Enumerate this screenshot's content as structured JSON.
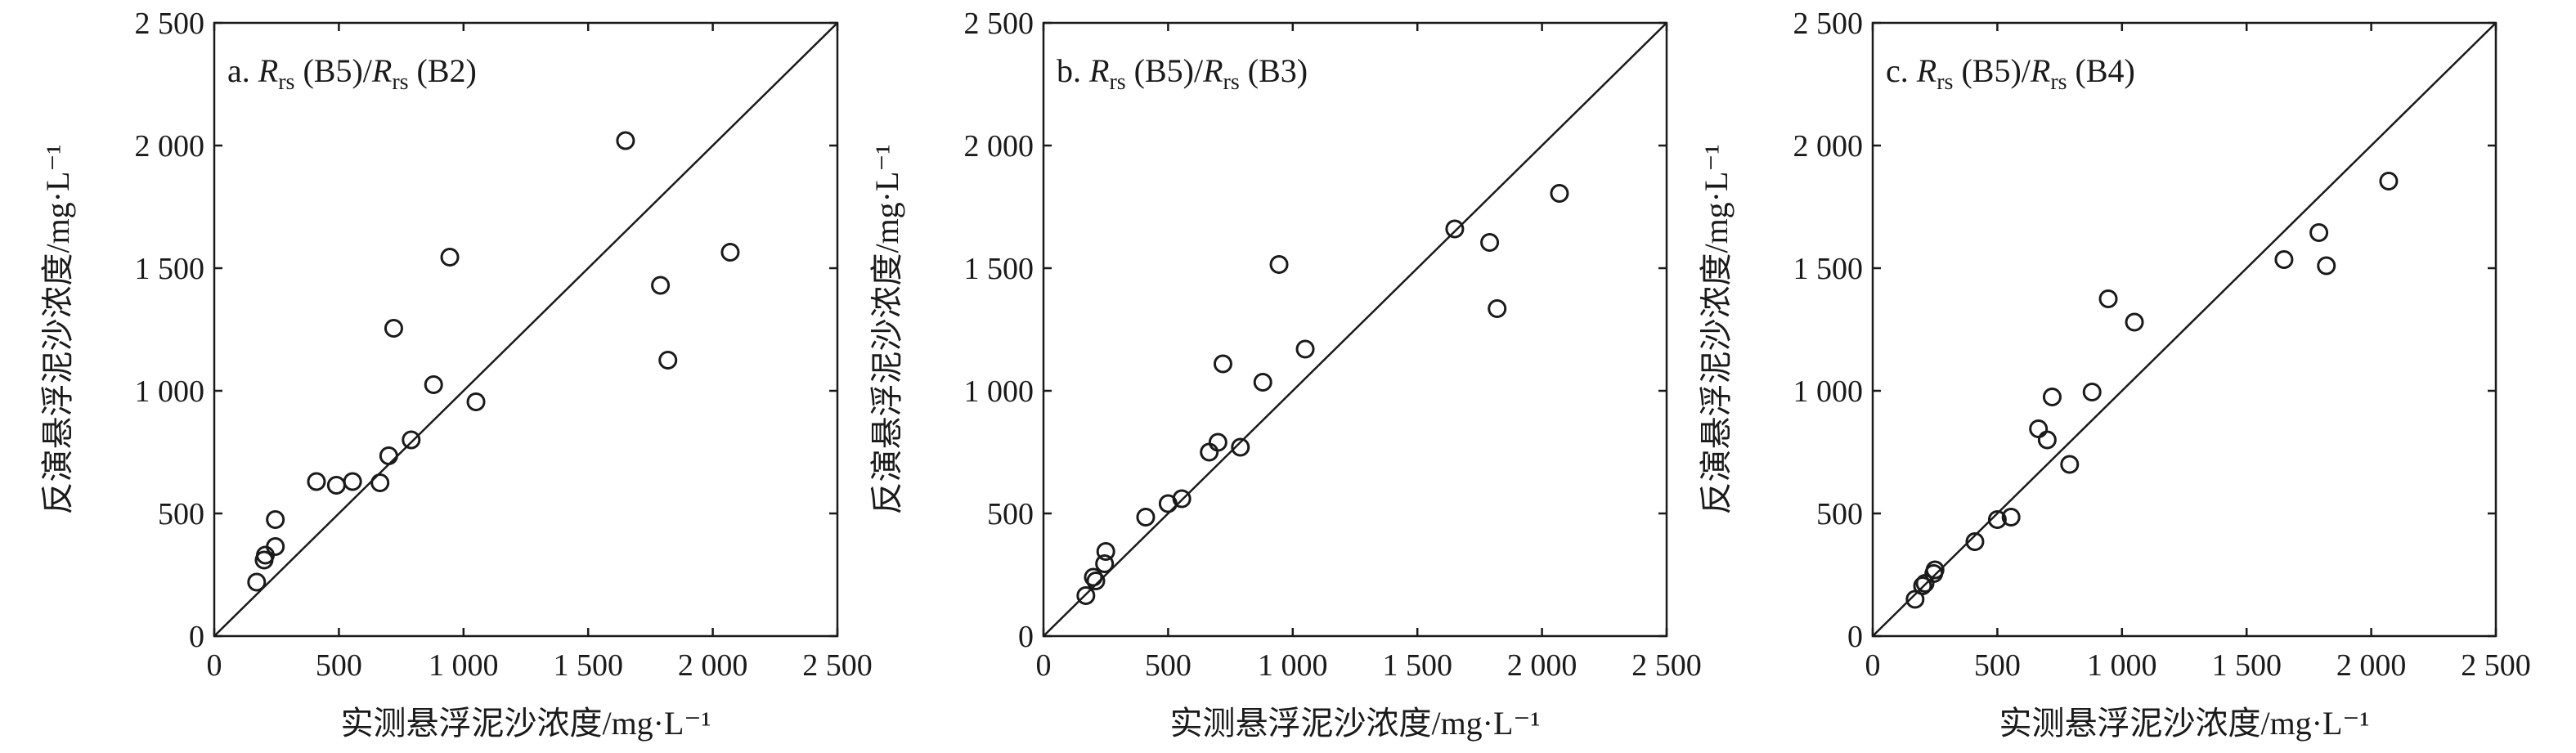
{
  "chart_data": [
    {
      "type": "scatter",
      "panel_label": "a.",
      "title": {
        "r1": "R",
        "s1": "rs",
        "b1": " (B5)/",
        "r2": "R",
        "s2": "rs",
        "b2": " (B2)"
      },
      "xlabel": "实测悬浮泥沙浓度/mg·L⁻¹",
      "ylabel": "反演悬浮泥沙浓度/mg·L⁻¹",
      "xlim": [
        0,
        2500
      ],
      "ylim": [
        0,
        2500
      ],
      "x_ticks": [
        0,
        500,
        1000,
        1500,
        2000,
        2500
      ],
      "y_ticks": [
        0,
        500,
        1000,
        1500,
        2000,
        2500
      ],
      "x_tick_labels": [
        "0",
        "500",
        "1 000",
        "1 500",
        "2 000",
        "2 500"
      ],
      "y_tick_labels": [
        "0",
        "500",
        "1 000",
        "1 500",
        "2 000",
        "2 500"
      ],
      "reference_line": "1:1",
      "grid": false,
      "points": [
        {
          "x": 170,
          "y": 220
        },
        {
          "x": 200,
          "y": 310
        },
        {
          "x": 205,
          "y": 330
        },
        {
          "x": 245,
          "y": 365
        },
        {
          "x": 245,
          "y": 475
        },
        {
          "x": 410,
          "y": 630
        },
        {
          "x": 490,
          "y": 615
        },
        {
          "x": 555,
          "y": 630
        },
        {
          "x": 665,
          "y": 625
        },
        {
          "x": 700,
          "y": 735
        },
        {
          "x": 790,
          "y": 800
        },
        {
          "x": 720,
          "y": 1255
        },
        {
          "x": 880,
          "y": 1025
        },
        {
          "x": 945,
          "y": 1545
        },
        {
          "x": 1050,
          "y": 955
        },
        {
          "x": 1650,
          "y": 2020
        },
        {
          "x": 1790,
          "y": 1430
        },
        {
          "x": 1820,
          "y": 1125
        },
        {
          "x": 2070,
          "y": 1565
        }
      ]
    },
    {
      "type": "scatter",
      "panel_label": "b.",
      "title": {
        "r1": "R",
        "s1": "rs",
        "b1": " (B5)/",
        "r2": "R",
        "s2": "rs",
        "b2": " (B3)"
      },
      "xlabel": "实测悬浮泥沙浓度/mg·L⁻¹",
      "ylabel": "反演悬浮泥沙浓度/mg·L⁻¹",
      "xlim": [
        0,
        2500
      ],
      "ylim": [
        0,
        2500
      ],
      "x_ticks": [
        0,
        500,
        1000,
        1500,
        2000,
        2500
      ],
      "y_ticks": [
        0,
        500,
        1000,
        1500,
        2000,
        2500
      ],
      "x_tick_labels": [
        "0",
        "500",
        "1 000",
        "1 500",
        "2 000",
        "2 500"
      ],
      "y_tick_labels": [
        "0",
        "500",
        "1 000",
        "1 500",
        "2 000",
        "2 500"
      ],
      "reference_line": "1:1",
      "grid": false,
      "points": [
        {
          "x": 170,
          "y": 165
        },
        {
          "x": 200,
          "y": 240
        },
        {
          "x": 210,
          "y": 225
        },
        {
          "x": 245,
          "y": 295
        },
        {
          "x": 250,
          "y": 345
        },
        {
          "x": 410,
          "y": 485
        },
        {
          "x": 500,
          "y": 540
        },
        {
          "x": 555,
          "y": 560
        },
        {
          "x": 665,
          "y": 750
        },
        {
          "x": 700,
          "y": 790
        },
        {
          "x": 790,
          "y": 770
        },
        {
          "x": 720,
          "y": 1110
        },
        {
          "x": 880,
          "y": 1035
        },
        {
          "x": 945,
          "y": 1515
        },
        {
          "x": 1050,
          "y": 1170
        },
        {
          "x": 1650,
          "y": 1660
        },
        {
          "x": 1790,
          "y": 1605
        },
        {
          "x": 1820,
          "y": 1335
        },
        {
          "x": 2070,
          "y": 1805
        }
      ]
    },
    {
      "type": "scatter",
      "panel_label": "c.",
      "title": {
        "r1": "R",
        "s1": "rs",
        "b1": " (B5)/",
        "r2": "R",
        "s2": "rs",
        "b2": " (B4)"
      },
      "xlabel": "实测悬浮泥沙浓度/mg·L⁻¹",
      "ylabel": "反演悬浮泥沙浓度/mg·L⁻¹",
      "xlim": [
        0,
        2500
      ],
      "ylim": [
        0,
        2500
      ],
      "x_ticks": [
        0,
        500,
        1000,
        1500,
        2000,
        2500
      ],
      "y_ticks": [
        0,
        500,
        1000,
        1500,
        2000,
        2500
      ],
      "x_tick_labels": [
        "0",
        "500",
        "1 000",
        "1 500",
        "2 000",
        "2 500"
      ],
      "y_tick_labels": [
        "0",
        "500",
        "1 000",
        "1 500",
        "2 000",
        "2 500"
      ],
      "reference_line": "1:1",
      "grid": false,
      "points": [
        {
          "x": 170,
          "y": 150
        },
        {
          "x": 200,
          "y": 205
        },
        {
          "x": 210,
          "y": 215
        },
        {
          "x": 245,
          "y": 255
        },
        {
          "x": 250,
          "y": 270
        },
        {
          "x": 410,
          "y": 385
        },
        {
          "x": 500,
          "y": 475
        },
        {
          "x": 555,
          "y": 485
        },
        {
          "x": 665,
          "y": 845
        },
        {
          "x": 700,
          "y": 800
        },
        {
          "x": 790,
          "y": 700
        },
        {
          "x": 720,
          "y": 975
        },
        {
          "x": 880,
          "y": 995
        },
        {
          "x": 945,
          "y": 1375
        },
        {
          "x": 1050,
          "y": 1280
        },
        {
          "x": 1650,
          "y": 1535
        },
        {
          "x": 1790,
          "y": 1645
        },
        {
          "x": 1820,
          "y": 1510
        },
        {
          "x": 2070,
          "y": 1855
        }
      ]
    }
  ],
  "colors": {
    "stroke": "#1a1a1a",
    "background": "#ffffff"
  }
}
